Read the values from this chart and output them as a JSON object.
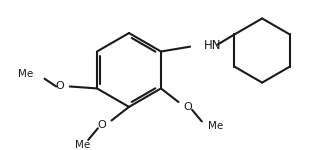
{
  "bg": "#ffffff",
  "lc": "#1a1a1a",
  "lw": 1.5,
  "fontsize": 7.5,
  "font_color": "#1a1a1a",
  "hn_text": "HN",
  "meo_texts": [
    "MeO",
    "MeO",
    "MeO"
  ],
  "figw": 3.27,
  "figh": 1.5
}
